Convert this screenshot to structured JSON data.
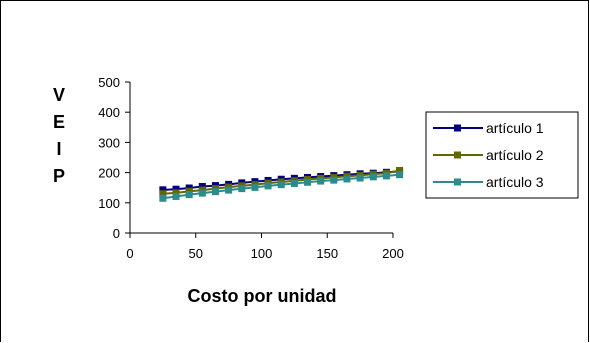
{
  "chart_data": {
    "type": "line",
    "xlabel": "Costo por unidad",
    "ylabel_letters": [
      "V",
      "E",
      "I",
      "P"
    ],
    "xlim": [
      0,
      200
    ],
    "ylim": [
      0,
      500
    ],
    "x_ticks": [
      0,
      50,
      100,
      150,
      200
    ],
    "y_ticks": [
      0,
      100,
      200,
      300,
      400,
      500
    ],
    "x": [
      25,
      35,
      45,
      55,
      65,
      75,
      85,
      95,
      105,
      115,
      125,
      135,
      145,
      155,
      165,
      175,
      185,
      195,
      205
    ],
    "series": [
      {
        "name": "artículo 1",
        "color": "#000080",
        "marker": "square",
        "values": [
          143,
          145,
          149,
          154,
          157,
          161,
          166,
          170,
          174,
          178,
          181,
          184,
          187,
          190,
          193,
          196,
          198,
          201,
          204
        ]
      },
      {
        "name": "artículo 2",
        "color": "#666600",
        "marker": "square",
        "values": [
          130,
          133,
          138,
          142,
          147,
          152,
          156,
          160,
          165,
          169,
          173,
          177,
          181,
          184,
          188,
          191,
          195,
          198,
          207
        ]
      },
      {
        "name": "artículo 3",
        "color": "#2E8B8B",
        "marker": "square",
        "values": [
          115,
          121,
          127,
          132,
          137,
          142,
          147,
          151,
          156,
          160,
          164,
          168,
          172,
          175,
          179,
          182,
          186,
          189,
          193
        ]
      }
    ],
    "legend_position": "right",
    "grid": false
  }
}
